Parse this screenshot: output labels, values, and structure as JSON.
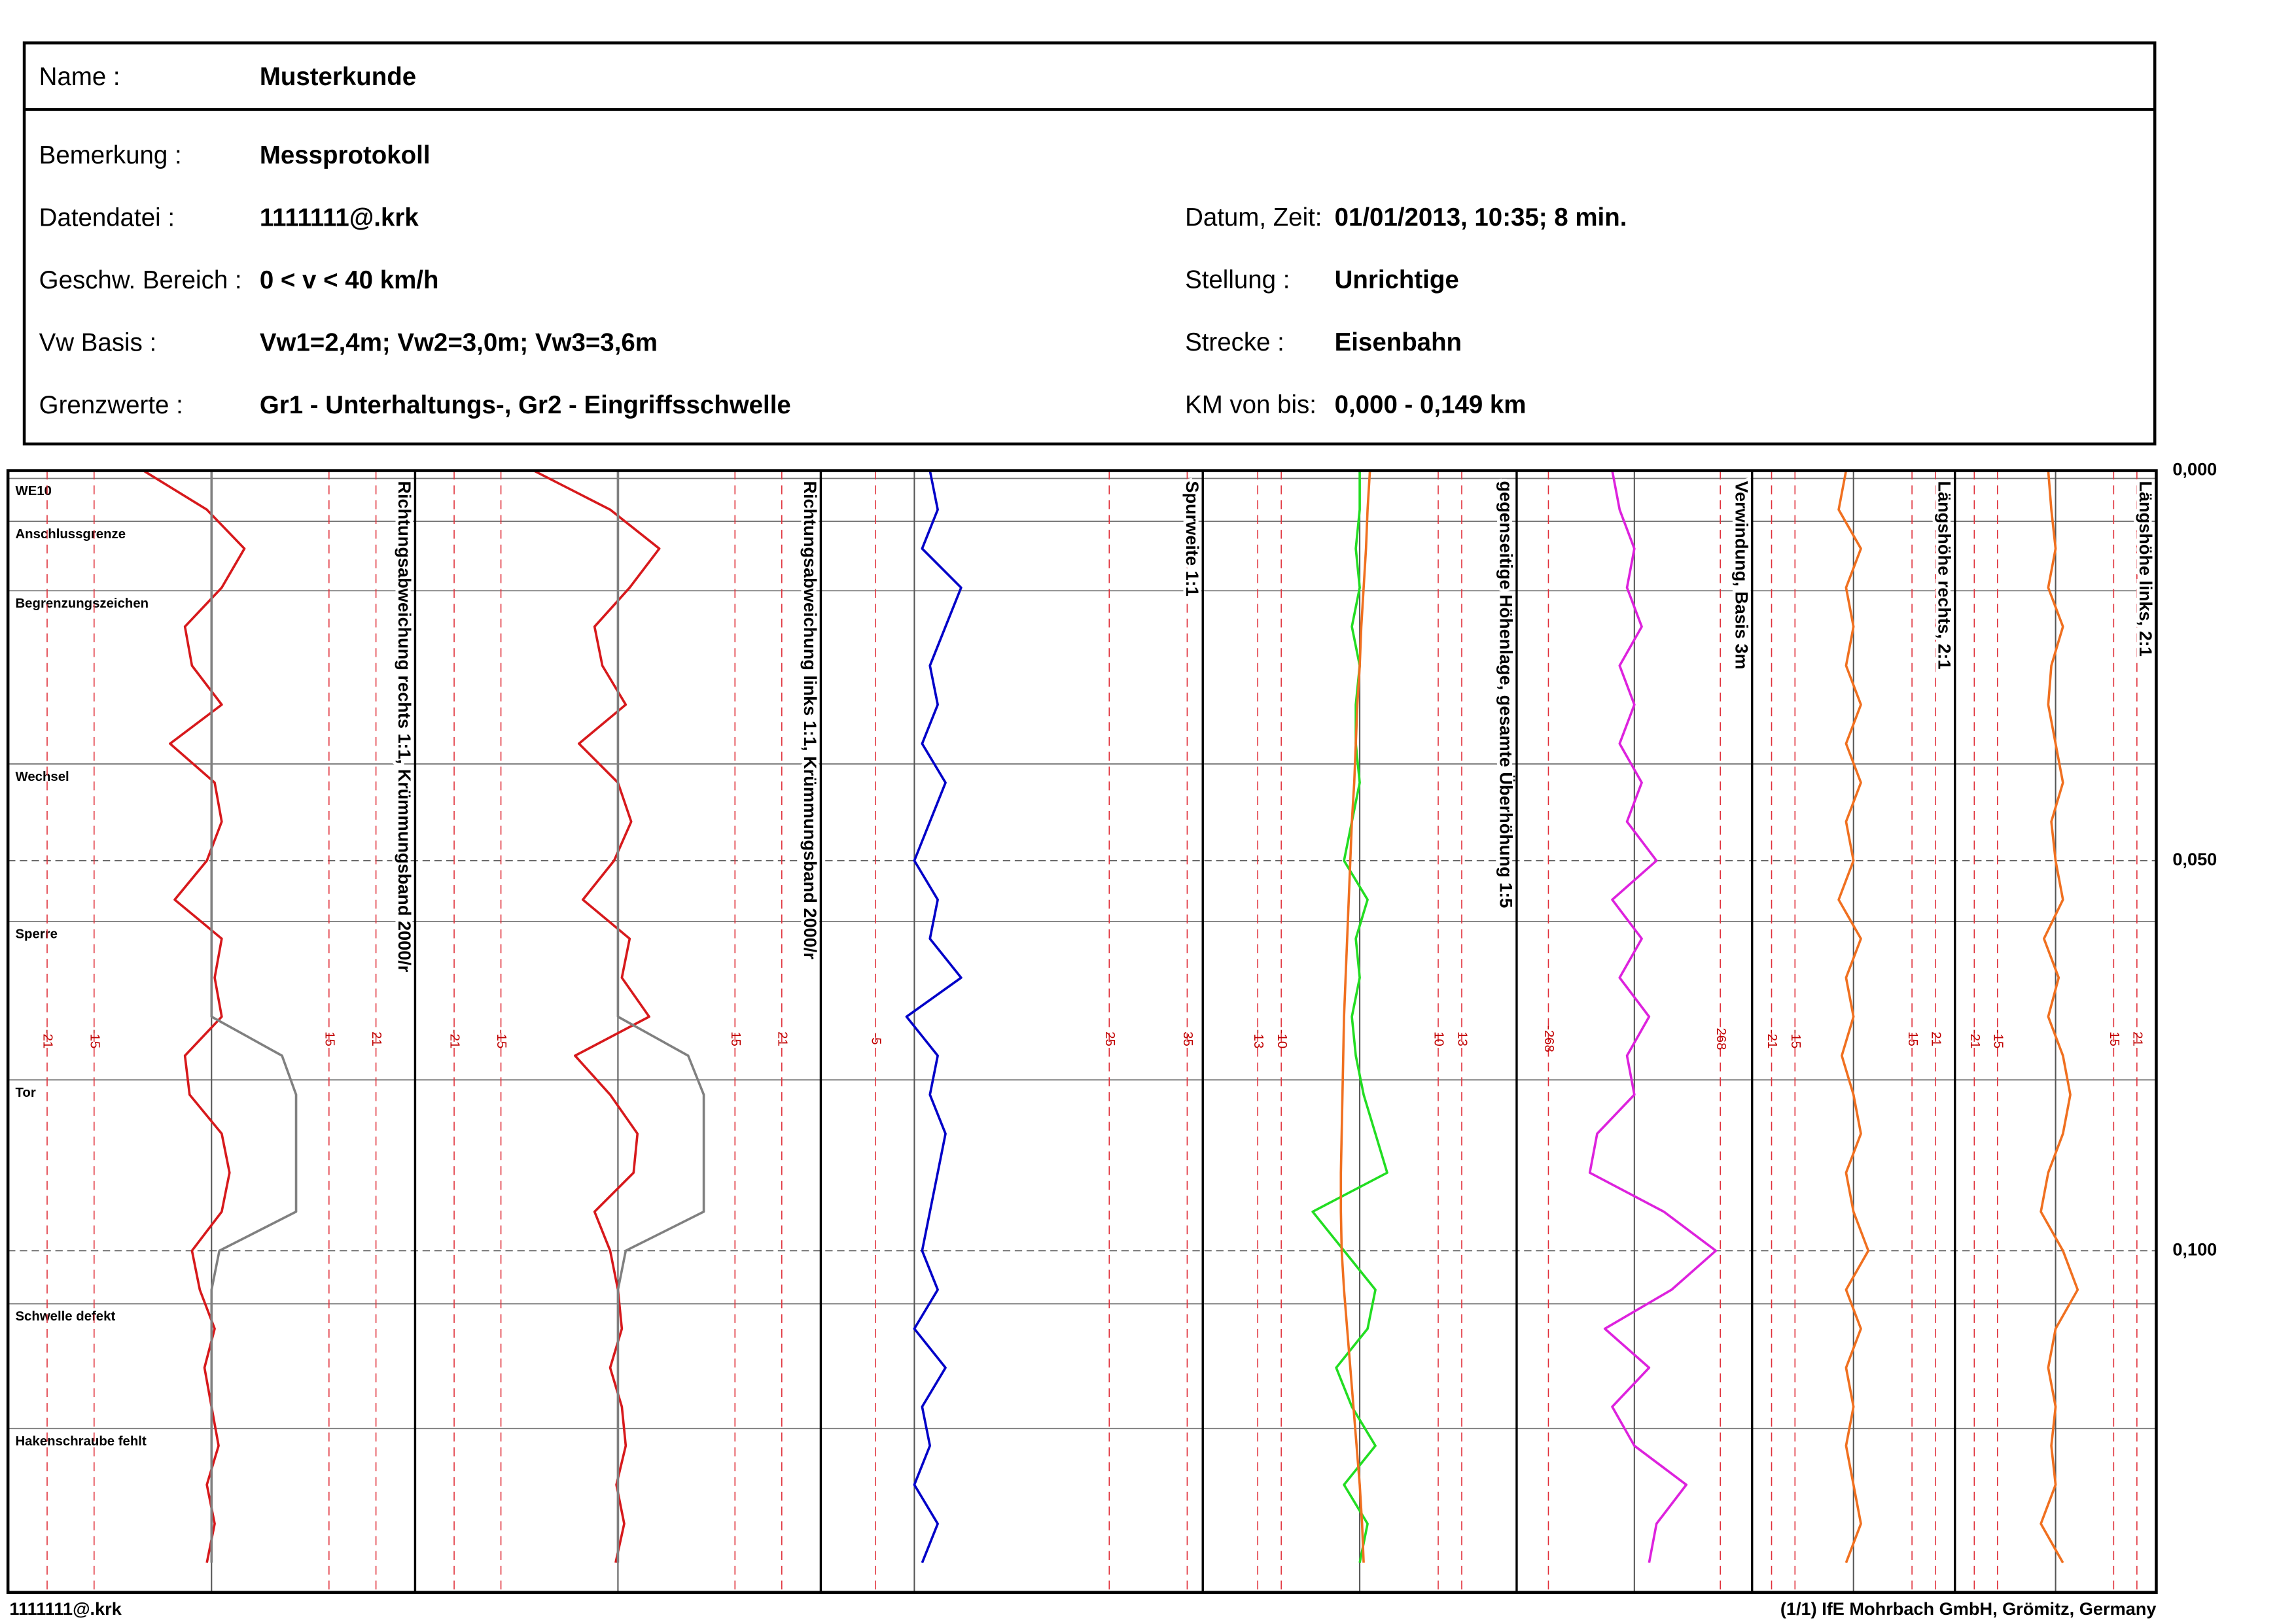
{
  "header": {
    "name": {
      "label": "Name :",
      "value": "Musterkunde"
    },
    "left": [
      {
        "label": "Bemerkung :",
        "value": "Messprotokoll"
      },
      {
        "label": "Datendatei :",
        "value": "1111111@.krk"
      },
      {
        "label": "Geschw. Bereich :",
        "value": "0 < v < 40 km/h"
      },
      {
        "label": "Vw Basis :",
        "value": "Vw1=2,4m; Vw2=3,0m; Vw3=3,6m"
      },
      {
        "label": "Grenzwerte :",
        "value": "Gr1 - Unterhaltungs-,  Gr2 - Eingriffsschwelle"
      }
    ],
    "right": [
      {
        "label": "Datum, Zeit:",
        "value": "01/01/2013, 10:35; 8 min."
      },
      {
        "label": "Stellung :",
        "value": "Unrichtige"
      },
      {
        "label": "Strecke :",
        "value": "Eisenbahn"
      },
      {
        "label": "KM von bis:",
        "value": "0,000 - 0,149 km"
      }
    ]
  },
  "chart_data": {
    "type": "line",
    "ylim": [
      0,
      0.1438
    ],
    "yticks": [
      {
        "value": 0,
        "label": "0,000"
      },
      {
        "value": 0.05,
        "label": "0,050"
      },
      {
        "value": 0.1,
        "label": "0,100"
      }
    ],
    "x": [
      0,
      0.005,
      0.01,
      0.015,
      0.02,
      0.025,
      0.03,
      0.035,
      0.04,
      0.045,
      0.05,
      0.055,
      0.06,
      0.065,
      0.07,
      0.075,
      0.08,
      0.085,
      0.09,
      0.095,
      0.1,
      0.105,
      0.11,
      0.115,
      0.12,
      0.125,
      0.13,
      0.135,
      0.14
    ],
    "markers": [
      {
        "km": 0.001,
        "label": "WE10"
      },
      {
        "km": 0.0065,
        "label": "Anschlussgrenze"
      },
      {
        "km": 0.0154,
        "label": "Begrenzungszeichen"
      },
      {
        "km": 0.0376,
        "label": "Wechsel"
      },
      {
        "km": 0.0578,
        "label": "Sperre"
      },
      {
        "km": 0.0781,
        "label": "Tor"
      },
      {
        "km": 0.1068,
        "label": "Schwelle defekt"
      },
      {
        "km": 0.1228,
        "label": "Hakenschraube fehlt"
      }
    ],
    "tracks": [
      {
        "title": "Richtungsabweichung rechts 1:1, Krümmungsband 2000/r",
        "xlim": [
          -26,
          26
        ],
        "xticks": [
          -21,
          -15,
          15,
          21
        ],
        "series": [
          {
            "color": "#d7191c",
            "values": [
              -8.7,
              -0.6,
              4.2,
              1.3,
              -3.4,
              -2.5,
              1.3,
              -5.3,
              0.4,
              1.3,
              -0.6,
              -4.7,
              1.3,
              0.4,
              1.3,
              -3.4,
              -2.8,
              1.3,
              2.3,
              1.3,
              -2.5,
              -1.5,
              0.4,
              -0.9,
              0,
              0.9,
              -0.6,
              0.4,
              -0.6
            ]
          },
          {
            "color": "#808080",
            "values": [
              0,
              0,
              0,
              0,
              0,
              0,
              0,
              0,
              0,
              0,
              0,
              0,
              0,
              0,
              0,
              9,
              10.8,
              10.8,
              10.8,
              10.8,
              1,
              0,
              0,
              0,
              0,
              0,
              0,
              0,
              0
            ]
          }
        ]
      },
      {
        "title": "Richtungsabweichung links 1:1, Krümmungsband 2000/r",
        "xlim": [
          -26,
          26
        ],
        "xticks": [
          -21,
          -15,
          15,
          21
        ],
        "series": [
          {
            "color": "#d7191c",
            "values": [
              -10.8,
              -1,
              5.3,
              1.5,
              -3,
              -2,
              1,
              -5,
              0,
              1.7,
              -0.5,
              -4.5,
              1.5,
              0.5,
              4,
              -5.5,
              -1,
              2.5,
              2,
              -3,
              -1,
              0,
              0.5,
              -1,
              0.5,
              1,
              -0.2,
              0.8,
              -0.3
            ]
          },
          {
            "color": "#808080",
            "values": [
              0,
              0,
              0,
              0,
              0,
              0,
              0,
              0,
              0,
              0,
              0,
              0,
              0,
              0,
              0,
              9,
              11,
              11,
              11,
              11,
              1,
              0,
              0,
              0,
              0,
              0,
              0,
              0,
              0
            ]
          }
        ]
      },
      {
        "title": "Spurweite 1:1",
        "xlim": [
          -12,
          37
        ],
        "xticks": [
          -5,
          25,
          35
        ],
        "series": [
          {
            "color": "#0000c8",
            "values": [
              2,
              3,
              1,
              6,
              4,
              2,
              3,
              1,
              4,
              2,
              0,
              3,
              2,
              6,
              -1,
              3,
              2,
              4,
              3,
              2,
              1,
              3,
              0,
              4,
              1,
              2,
              0,
              3,
              1
            ]
          }
        ]
      },
      {
        "title": "gegenseitige Höhenlage, gesamte Überhöhung 1:5",
        "xlim": [
          -20,
          20
        ],
        "xticks": [
          -13,
          -10,
          10,
          13
        ],
        "series": [
          {
            "color": "#22dd22",
            "values": [
              0,
              0,
              -0.5,
              0,
              -1,
              0,
              -0.5,
              -0.5,
              0,
              -1,
              -2,
              1,
              -0.5,
              0,
              -1,
              -0.5,
              0.5,
              2,
              3.5,
              -6,
              -2,
              2,
              1,
              -3,
              -1,
              2,
              -2,
              1,
              0
            ]
          },
          {
            "color": "#f07020",
            "values": [
              1.3,
              1,
              0.8,
              0.5,
              0.2,
              0,
              -0.3,
              -0.5,
              -0.7,
              -1,
              -1.2,
              -1.4,
              -1.6,
              -1.8,
              -2,
              -2.1,
              -2.2,
              -2.3,
              -2.4,
              -2.4,
              -2.3,
              -2,
              -1.6,
              -1.2,
              -0.8,
              -0.4,
              0,
              0.3,
              0.5
            ]
          }
        ]
      },
      {
        "title": "Verwindung, Basis 3m",
        "xlim": [
          -367,
          367
        ],
        "xticks": [
          -268,
          268
        ],
        "series": [
          {
            "color": "#dd22dd",
            "values": [
              -69,
              -46,
              0,
              -23,
              23,
              -46,
              0,
              -46,
              23,
              -23,
              69,
              -69,
              23,
              -46,
              46,
              -23,
              0,
              -116,
              -139,
              92,
              254,
              116,
              -92,
              46,
              -69,
              0,
              162,
              69,
              46
            ]
          }
        ]
      },
      {
        "title": "Längshöhe rechts, 2:1",
        "xlim": [
          -26,
          26
        ],
        "xticks": [
          -21,
          -15,
          15,
          21
        ],
        "series": [
          {
            "color": "#f07020",
            "values": [
              -1.9,
              -3.8,
              1.9,
              -1.9,
              0,
              -1.9,
              1.9,
              -1.9,
              1.9,
              -1.9,
              0,
              -3.8,
              1.9,
              -1.9,
              0,
              -3,
              0,
              1.9,
              -1.9,
              0,
              3.8,
              -1.9,
              1.9,
              -1.9,
              0,
              -1.9,
              0,
              1.9,
              -1.9
            ]
          }
        ]
      },
      {
        "title": "Längshöhe links, 2:1",
        "xlim": [
          -26,
          26
        ],
        "xticks": [
          -21,
          -15,
          15,
          21
        ],
        "series": [
          {
            "color": "#f07020",
            "values": [
              -1.9,
              -1.1,
              0,
              -1.9,
              1.9,
              -1.1,
              -1.9,
              0,
              1.9,
              -1.1,
              0,
              1.9,
              -3,
              0.8,
              -1.9,
              1.9,
              3.8,
              1.9,
              -1.9,
              -3.8,
              1.9,
              5.7,
              0,
              -1.9,
              0,
              -1.1,
              0,
              -3.8,
              1.9
            ]
          }
        ]
      }
    ]
  },
  "footer": {
    "file": "1111111@.krk",
    "credit": "(1/1)  IfE Mohrbach GmbH, Grömitz, Germany"
  }
}
